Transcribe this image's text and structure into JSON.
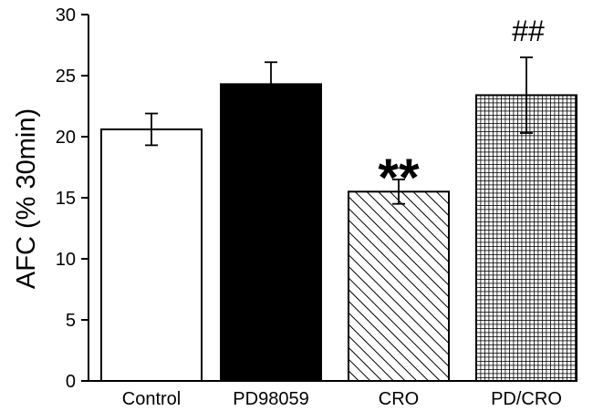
{
  "chart_data": {
    "type": "bar",
    "title": "",
    "xlabel": "",
    "ylabel": "AFC (% 30min)",
    "ylim": [
      0,
      30
    ],
    "yticks": [
      0,
      5,
      10,
      15,
      20,
      25,
      30
    ],
    "grid": false,
    "categories": [
      "Control",
      "PD98059",
      "CRO",
      "PD/CRO"
    ],
    "values": [
      20.6,
      24.3,
      15.5,
      23.4
    ],
    "errors": [
      1.3,
      1.8,
      1.0,
      3.1
    ],
    "fills": [
      "white",
      "black",
      "diagonal-hatch",
      "crosshatch"
    ],
    "annotations": [
      "",
      "",
      "**",
      "##"
    ]
  }
}
